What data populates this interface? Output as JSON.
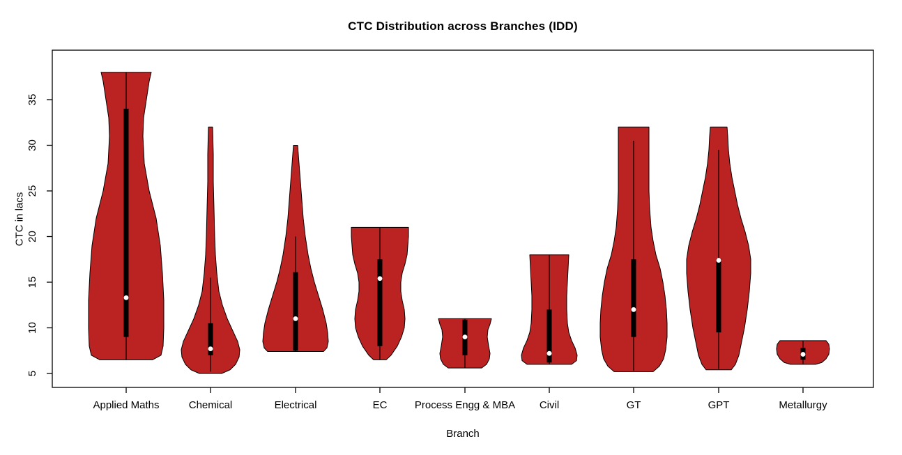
{
  "chart_data": {
    "type": "violin",
    "title": "CTC Distribution across Branches (IDD)",
    "xlabel": "Branch",
    "ylabel": "CTC in lacs",
    "y_ticks": [
      5,
      10,
      15,
      20,
      25,
      30,
      35
    ],
    "ylim": [
      3.5,
      40.5
    ],
    "grid": false,
    "fill_color": "#BB2222",
    "outline_color": "#000000",
    "box_color": "#000000",
    "median_dot_color": "#ffffff",
    "categories": [
      "Applied Maths",
      "Chemical",
      "Electrical",
      "EC",
      "Process Engg & MBA",
      "Civil",
      "GT",
      "GPT",
      "Metallurgy"
    ],
    "violins": [
      {
        "label": "Applied Maths",
        "center": 181,
        "range": [
          6.5,
          38
        ],
        "median": 13.3,
        "box": [
          9,
          34
        ],
        "whisker": [
          6.5,
          38
        ],
        "profile": [
          [
            6.5,
            38
          ],
          [
            7,
            50
          ],
          [
            8,
            53
          ],
          [
            10,
            54
          ],
          [
            13,
            54
          ],
          [
            16,
            52
          ],
          [
            19,
            49
          ],
          [
            22,
            43
          ],
          [
            25,
            33
          ],
          [
            28,
            26
          ],
          [
            31,
            24
          ],
          [
            33,
            25
          ],
          [
            35,
            29
          ],
          [
            37,
            33
          ],
          [
            38,
            36
          ]
        ]
      },
      {
        "label": "Chemical",
        "center": 302,
        "range": [
          5,
          32
        ],
        "median": 7.7,
        "box": [
          7,
          10.5
        ],
        "whisker": [
          5.2,
          15.5
        ],
        "profile": [
          [
            5,
            16
          ],
          [
            5.4,
            28
          ],
          [
            6,
            36
          ],
          [
            6.8,
            41
          ],
          [
            7.6,
            42
          ],
          [
            8.5,
            39
          ],
          [
            9.5,
            33
          ],
          [
            11,
            24
          ],
          [
            12.5,
            17
          ],
          [
            14,
            12
          ],
          [
            16,
            9
          ],
          [
            18,
            7
          ],
          [
            20,
            6
          ],
          [
            23,
            5
          ],
          [
            26,
            4
          ],
          [
            29,
            4
          ],
          [
            32,
            3
          ]
        ]
      },
      {
        "label": "Electrical",
        "center": 424,
        "range": [
          7.4,
          30
        ],
        "median": 11,
        "box": [
          7.5,
          16.1
        ],
        "whisker": [
          7.4,
          20
        ],
        "profile": [
          [
            7.4,
            40
          ],
          [
            7.8,
            45
          ],
          [
            8.5,
            47
          ],
          [
            9.5,
            46
          ],
          [
            10.5,
            44
          ],
          [
            12,
            39
          ],
          [
            13.5,
            33
          ],
          [
            15,
            27
          ],
          [
            16.5,
            22
          ],
          [
            18,
            18
          ],
          [
            20,
            14
          ],
          [
            22,
            11
          ],
          [
            24,
            9
          ],
          [
            26,
            7
          ],
          [
            28,
            5
          ],
          [
            30,
            3
          ]
        ]
      },
      {
        "label": "EC",
        "center": 545,
        "range": [
          6.5,
          21
        ],
        "median": 15.4,
        "box": [
          8,
          17.5
        ],
        "whisker": [
          6.5,
          21
        ],
        "profile": [
          [
            6.5,
            9
          ],
          [
            7,
            16
          ],
          [
            8,
            25
          ],
          [
            9,
            31
          ],
          [
            10,
            35
          ],
          [
            11,
            36
          ],
          [
            12,
            35
          ],
          [
            13,
            32
          ],
          [
            14,
            30
          ],
          [
            15,
            30
          ],
          [
            16,
            32
          ],
          [
            17,
            36
          ],
          [
            18,
            39
          ],
          [
            19,
            40
          ],
          [
            20,
            41
          ],
          [
            21,
            41
          ]
        ]
      },
      {
        "label": "Process Engg & MBA",
        "center": 667,
        "range": [
          5.6,
          11
        ],
        "median": 9,
        "box": [
          7,
          10.9
        ],
        "whisker": [
          5.6,
          11
        ],
        "profile": [
          [
            5.6,
            24
          ],
          [
            6,
            31
          ],
          [
            6.6,
            35
          ],
          [
            7.2,
            36
          ],
          [
            8,
            34
          ],
          [
            9,
            32
          ],
          [
            9.8,
            33
          ],
          [
            10.4,
            36
          ],
          [
            11,
            38
          ]
        ]
      },
      {
        "label": "Civil",
        "center": 788,
        "range": [
          6,
          18
        ],
        "median": 7.2,
        "box": [
          6.2,
          12
        ],
        "whisker": [
          6,
          18
        ],
        "profile": [
          [
            6,
            32
          ],
          [
            6.4,
            39
          ],
          [
            7,
            40
          ],
          [
            7.8,
            37
          ],
          [
            8.6,
            32
          ],
          [
            9.5,
            28
          ],
          [
            10.5,
            26
          ],
          [
            12,
            25
          ],
          [
            13.5,
            25
          ],
          [
            15,
            26
          ],
          [
            16.5,
            27
          ],
          [
            18,
            28
          ]
        ]
      },
      {
        "label": "GT",
        "center": 909,
        "range": [
          5.2,
          32
        ],
        "median": 12,
        "box": [
          9,
          17.5
        ],
        "whisker": [
          5.3,
          30.5
        ],
        "profile": [
          [
            5.2,
            28
          ],
          [
            5.8,
            37
          ],
          [
            6.6,
            43
          ],
          [
            7.6,
            46
          ],
          [
            9,
            48
          ],
          [
            10.5,
            48
          ],
          [
            12,
            47
          ],
          [
            13.5,
            45
          ],
          [
            15,
            42
          ],
          [
            16.5,
            38
          ],
          [
            18,
            32
          ],
          [
            19.5,
            28
          ],
          [
            21,
            25
          ],
          [
            23,
            23
          ],
          [
            25,
            22
          ],
          [
            27,
            22
          ],
          [
            29,
            22
          ],
          [
            30.5,
            22
          ],
          [
            32,
            22
          ]
        ]
      },
      {
        "label": "GPT",
        "center": 1031,
        "range": [
          5.4,
          32
        ],
        "median": 17.4,
        "box": [
          9.5,
          17.6
        ],
        "whisker": [
          5.5,
          29.5
        ],
        "profile": [
          [
            5.4,
            18
          ],
          [
            6,
            24
          ],
          [
            7,
            29
          ],
          [
            8.5,
            33
          ],
          [
            10,
            37
          ],
          [
            12,
            41
          ],
          [
            14,
            44
          ],
          [
            16,
            46
          ],
          [
            17.5,
            46
          ],
          [
            19,
            43
          ],
          [
            20.5,
            38
          ],
          [
            22,
            32
          ],
          [
            23.5,
            27
          ],
          [
            25,
            23
          ],
          [
            26.5,
            19
          ],
          [
            28,
            16
          ],
          [
            29.5,
            14
          ],
          [
            31,
            13
          ],
          [
            32,
            12
          ]
        ]
      },
      {
        "label": "Metallurgy",
        "center": 1152,
        "range": [
          6,
          8.6
        ],
        "median": 7.1,
        "box": [
          6.5,
          7.8
        ],
        "whisker": [
          6,
          8.6
        ],
        "profile": [
          [
            6,
            18
          ],
          [
            6.2,
            27
          ],
          [
            6.6,
            33
          ],
          [
            7.1,
            37
          ],
          [
            7.7,
            38
          ],
          [
            8.2,
            37
          ],
          [
            8.6,
            33
          ]
        ]
      }
    ]
  }
}
